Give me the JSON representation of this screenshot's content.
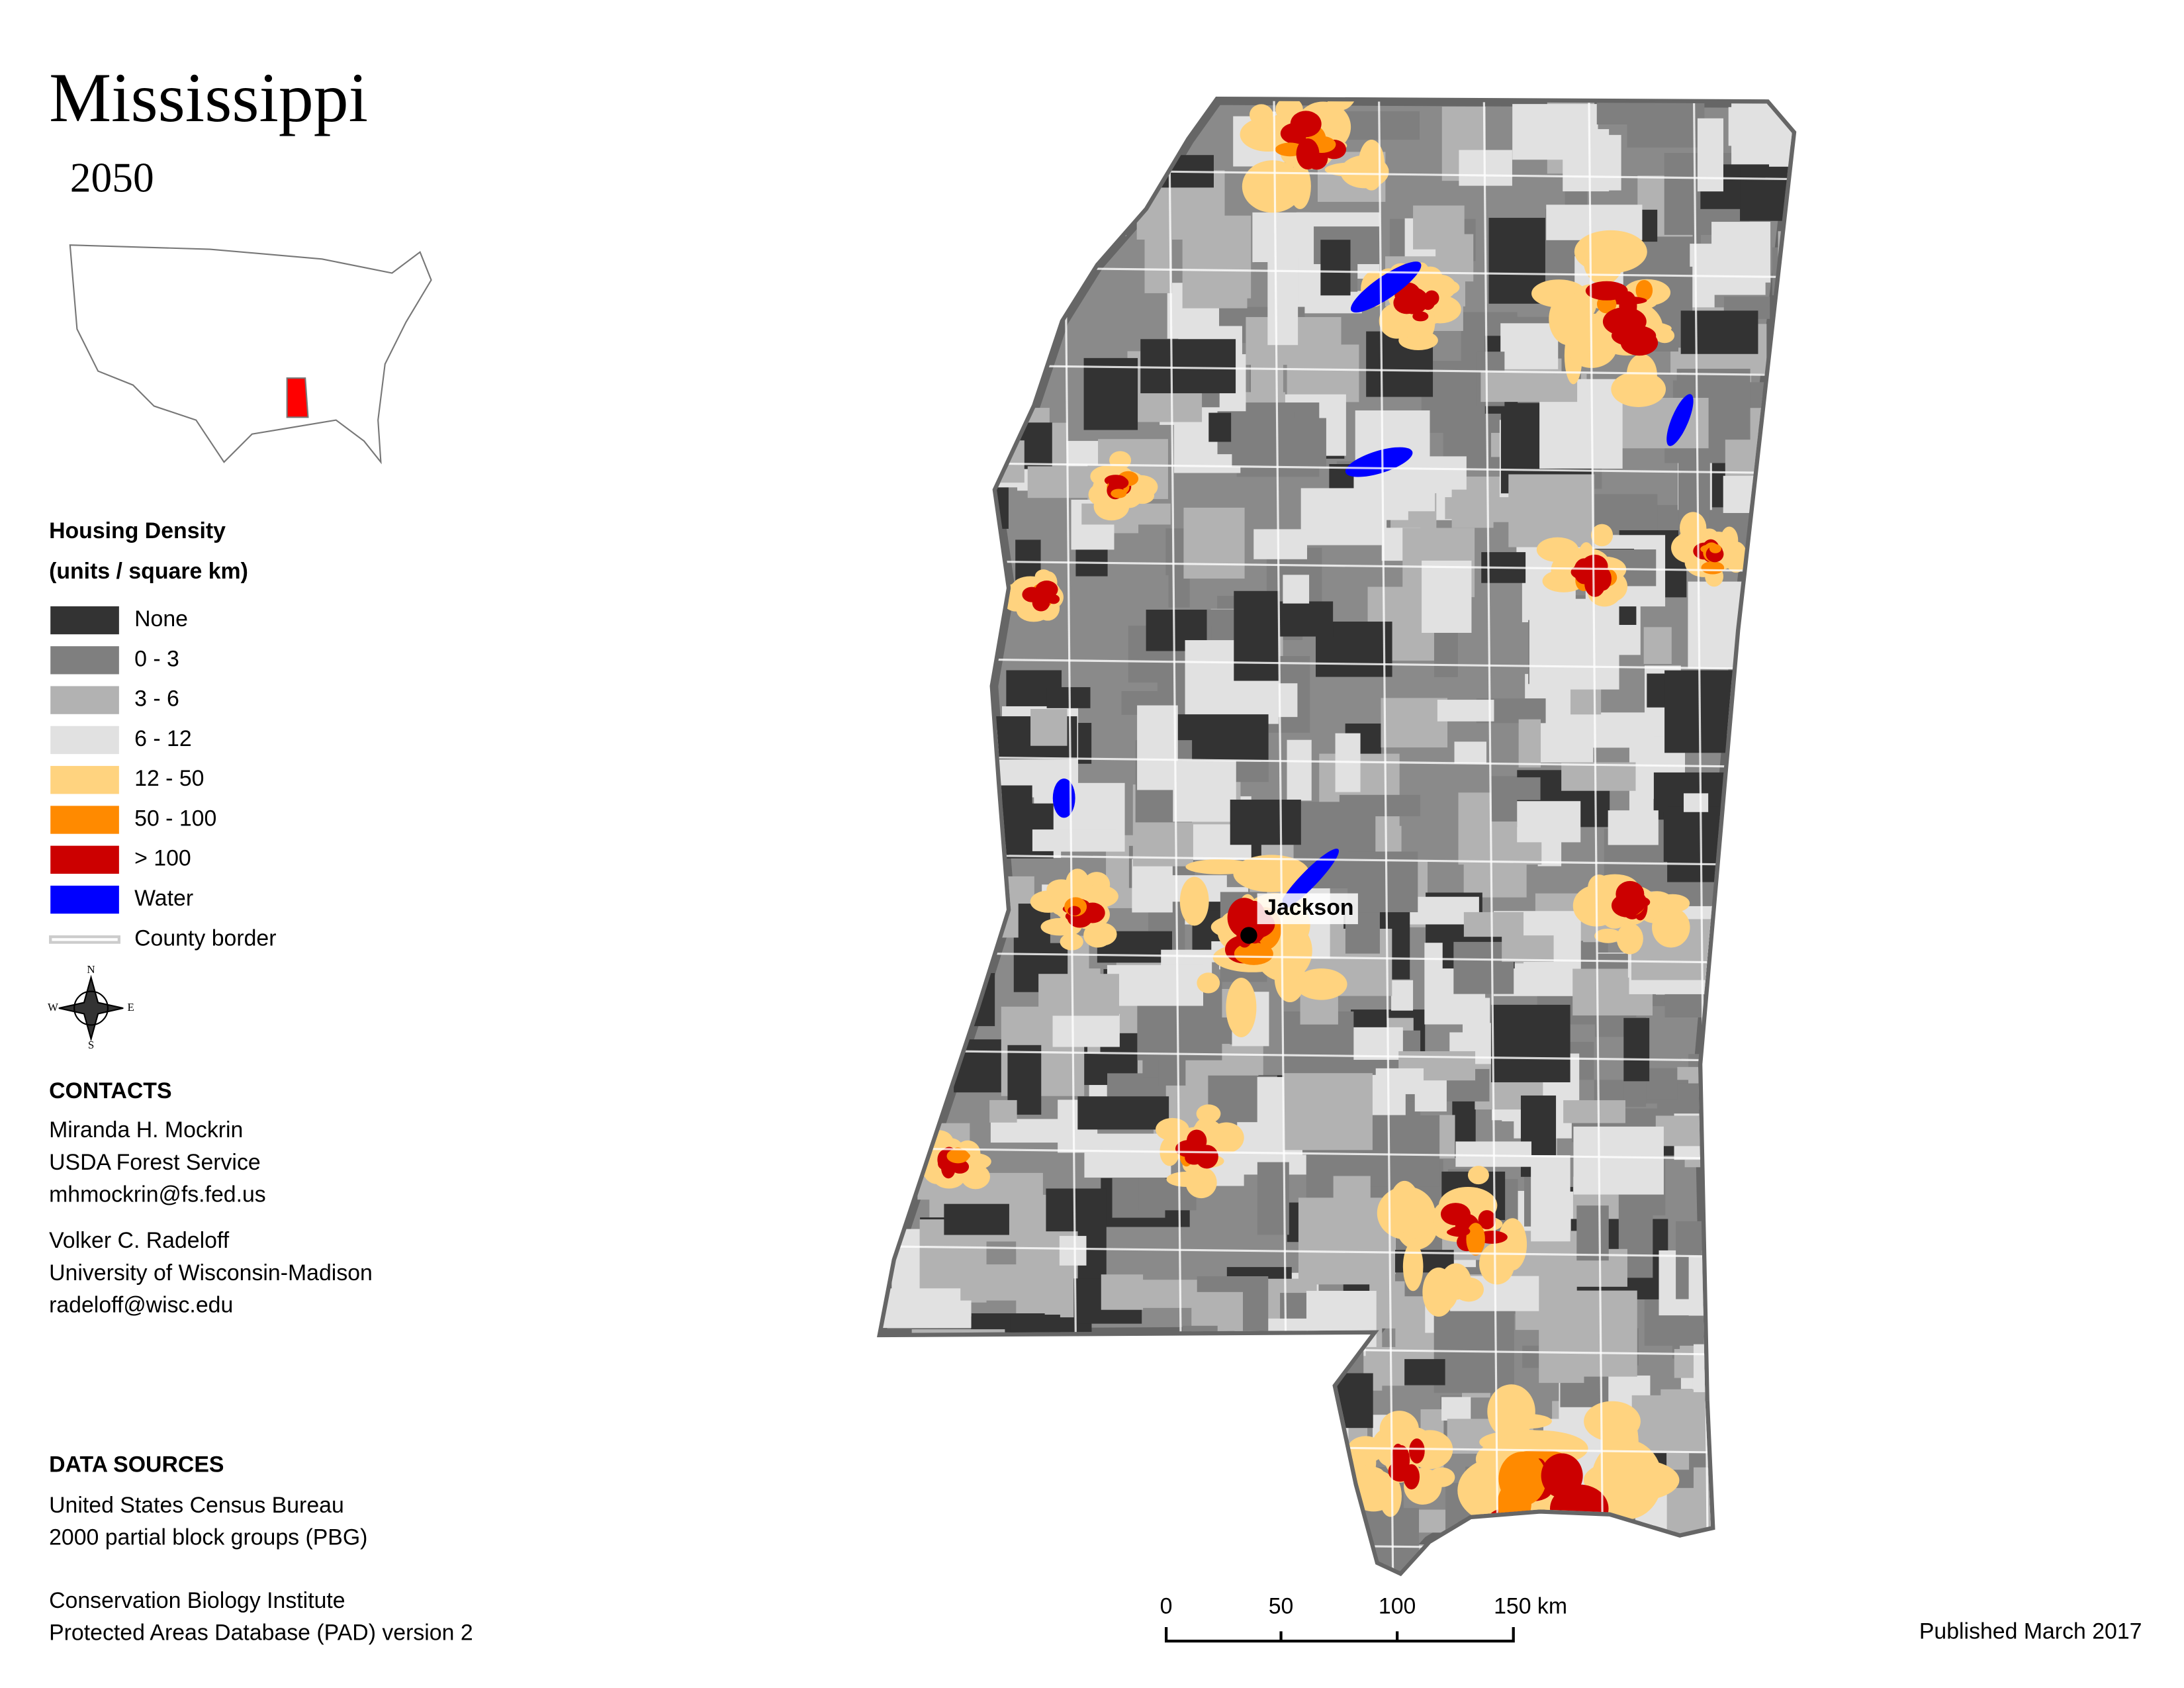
{
  "header": {
    "title": "Mississippi",
    "year": "2050"
  },
  "legend": {
    "title": "Housing Density",
    "subtitle": "(units / square km)",
    "items": [
      {
        "label": "None",
        "color": "#333333"
      },
      {
        "label": "0 - 3",
        "color": "#7f7f7f"
      },
      {
        "label": "3 - 6",
        "color": "#b2b2b2"
      },
      {
        "label": "6 - 12",
        "color": "#e1e1e1"
      },
      {
        "label": "12 - 50",
        "color": "#ffd37f"
      },
      {
        "label": "50 - 100",
        "color": "#ff8a00"
      },
      {
        "label": "> 100",
        "color": "#cc0000"
      },
      {
        "label": "Water",
        "color": "#0000ff"
      },
      {
        "label": "County border",
        "color": "#cccccc"
      }
    ]
  },
  "compass": {
    "n": "N",
    "s": "S",
    "e": "E",
    "w": "W"
  },
  "map": {
    "city": "Jackson"
  },
  "contacts": {
    "title": "CONTACTS",
    "people": [
      [
        "Miranda H. Mockrin",
        "USDA Forest Service",
        "mhmockrin@fs.fed.us"
      ],
      [
        "Volker C. Radeloff",
        "University of Wisconsin-Madison",
        "radeloff@wisc.edu"
      ]
    ]
  },
  "sources": {
    "title": "DATA SOURCES",
    "entries": [
      [
        "United States Census Bureau",
        "2000 partial block groups (PBG)"
      ],
      [
        "Conservation Biology Institute",
        "Protected Areas Database (PAD) version 2"
      ]
    ]
  },
  "scale_bar": {
    "labels": [
      "0",
      "50",
      "100",
      "150 km"
    ]
  },
  "footer": {
    "published": "Published March 2017"
  }
}
